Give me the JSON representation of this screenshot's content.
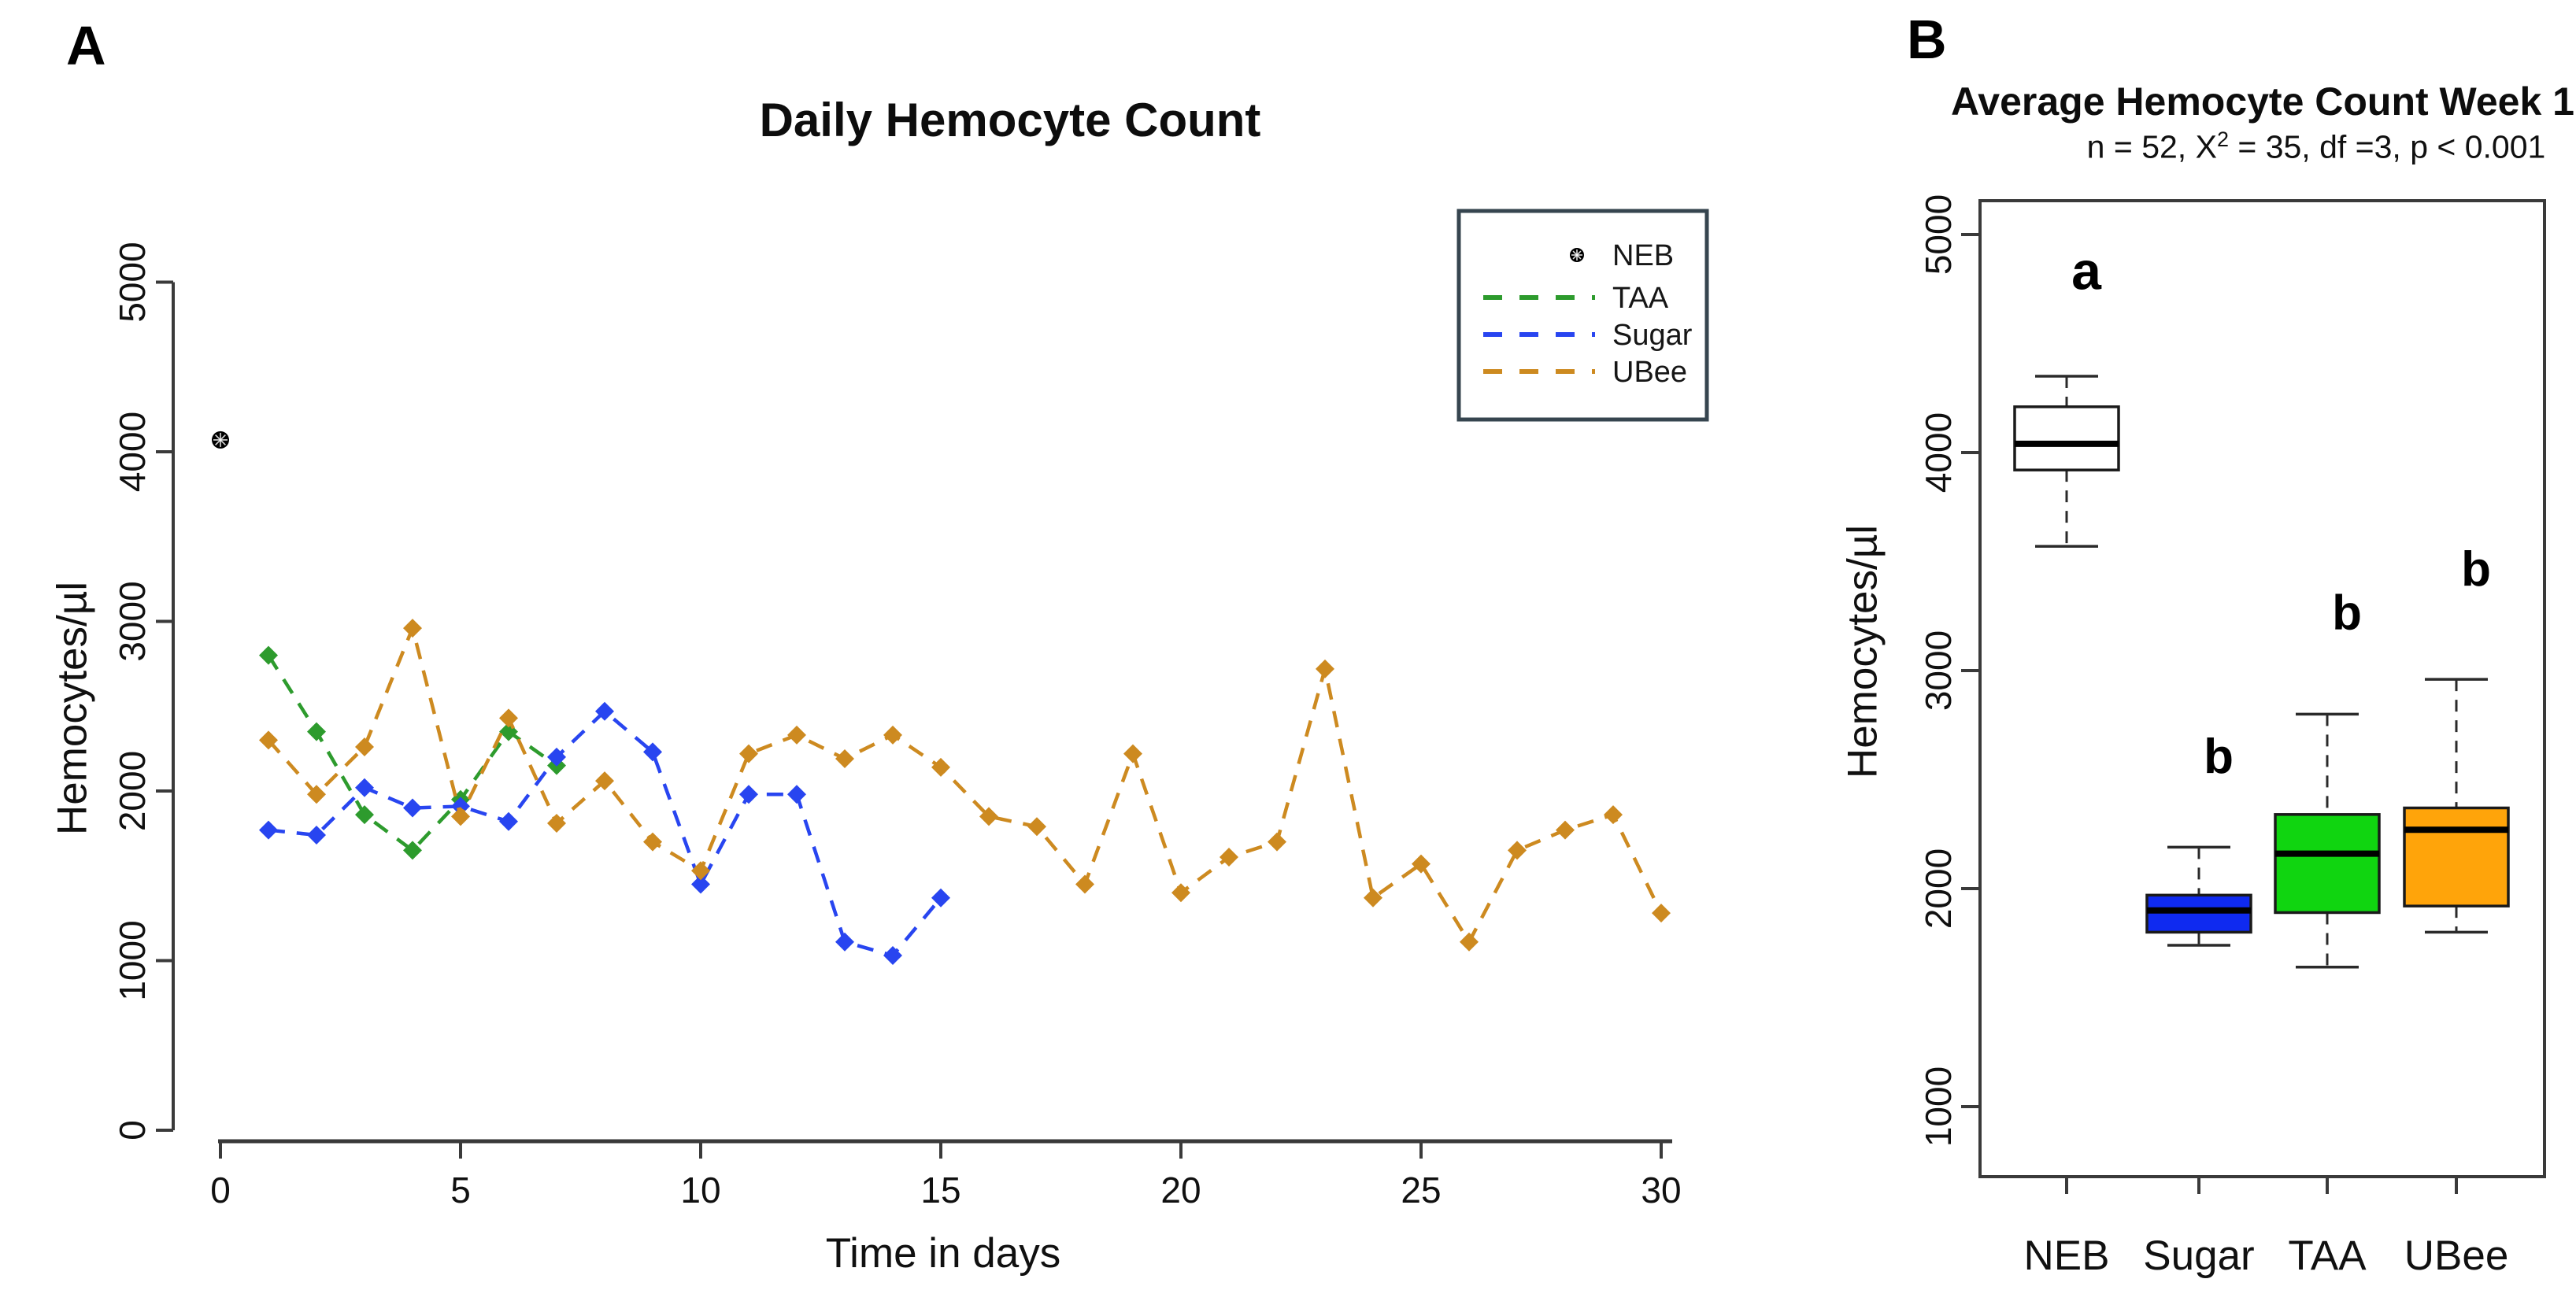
{
  "page": {
    "background": "#ffffff"
  },
  "panelA": {
    "panel_letter": "A",
    "legend": {
      "border_color": "#36454f",
      "items": [
        {
          "label": "NEB",
          "symbol": "circled-star-point",
          "color": "#000000"
        },
        {
          "label": "TAA",
          "symbol": "dashed-line",
          "color": "#2d9b2d"
        },
        {
          "label": "Sugar",
          "symbol": "dashed-line",
          "color": "#2845f0"
        },
        {
          "label": "UBee",
          "symbol": "dashed-line",
          "color": "#cd8a20"
        }
      ]
    }
  },
  "panelB": {
    "panel_letter": "B"
  },
  "chart_data": [
    {
      "type": "line",
      "panel": "A",
      "title": "Daily Hemocyte Count",
      "xlabel": "Time in days",
      "ylabel": "Hemocytes/µl",
      "xlim": [
        0,
        30
      ],
      "ylim": [
        0,
        5000
      ],
      "x_ticks": [
        0,
        5,
        10,
        15,
        20,
        25,
        30
      ],
      "y_ticks": [
        0,
        1000,
        2000,
        3000,
        4000,
        5000
      ],
      "grid": false,
      "legend_position": "top-right",
      "line_style": "dashed",
      "marker": "diamond",
      "series": [
        {
          "name": "NEB",
          "color": "#000000",
          "style": "point",
          "marker": "circled-star",
          "x": [
            0
          ],
          "values": [
            4070
          ]
        },
        {
          "name": "TAA",
          "color": "#2d9b2d",
          "style": "dashed",
          "marker": "diamond",
          "x": [
            1,
            2,
            3,
            4,
            5,
            6,
            7
          ],
          "values": [
            2800,
            2350,
            1860,
            1650,
            1950,
            2350,
            2150
          ]
        },
        {
          "name": "Sugar",
          "color": "#2845f0",
          "style": "dashed",
          "marker": "diamond",
          "x": [
            1,
            2,
            3,
            4,
            5,
            6,
            7,
            8,
            9,
            10,
            11,
            12,
            13,
            14,
            15
          ],
          "values": [
            1770,
            1740,
            2020,
            1900,
            1910,
            1820,
            2200,
            2470,
            2230,
            1450,
            1980,
            1980,
            1110,
            1030,
            1370
          ]
        },
        {
          "name": "UBee",
          "color": "#cd8a20",
          "style": "dashed",
          "marker": "diamond",
          "x": [
            1,
            2,
            3,
            4,
            5,
            6,
            7,
            8,
            9,
            10,
            11,
            12,
            13,
            14,
            15,
            16,
            17,
            18,
            19,
            20,
            21,
            22,
            23,
            24,
            25,
            26,
            27,
            28,
            29,
            30
          ],
          "values": [
            2300,
            1980,
            2260,
            2960,
            1850,
            2430,
            1810,
            2060,
            1700,
            1530,
            2220,
            2330,
            2190,
            2330,
            2140,
            1850,
            1790,
            1450,
            2220,
            1400,
            1610,
            1700,
            2720,
            1370,
            1570,
            1110,
            1650,
            1770,
            1860,
            1280
          ]
        }
      ]
    },
    {
      "type": "box",
      "panel": "B",
      "title": "Average Hemocyte Count Week 1",
      "subtitle": {
        "pre": "n = 52, X",
        "sup": "2",
        "post": " = 35, df =3, p < 0.001"
      },
      "ylabel": "Hemocytes/µl",
      "ylim": [
        700,
        5150
      ],
      "y_ticks": [
        1000,
        2000,
        3000,
        4000,
        5000
      ],
      "grid": false,
      "categories": [
        "NEB",
        "Sugar",
        "TAA",
        "UBee"
      ],
      "groups": [
        {
          "name": "NEB",
          "fill": "#ffffff",
          "min": 3570,
          "q1": 3920,
          "median": 4040,
          "q3": 4210,
          "max": 4350,
          "letter": "a",
          "letter_value": 4750
        },
        {
          "name": "Sugar",
          "fill": "#0f2af0",
          "min": 1740,
          "q1": 1800,
          "median": 1900,
          "q3": 1970,
          "max": 2190,
          "letter": "b",
          "letter_value": 2530
        },
        {
          "name": "TAA",
          "fill": "#10d510",
          "min": 1640,
          "q1": 1890,
          "median": 2160,
          "q3": 2340,
          "max": 2800,
          "letter": "b",
          "letter_value": 3190
        },
        {
          "name": "UBee",
          "fill": "#ffa40a",
          "min": 1800,
          "q1": 1920,
          "median": 2270,
          "q3": 2370,
          "max": 2960,
          "letter": "b",
          "letter_value": 3390
        }
      ]
    }
  ]
}
